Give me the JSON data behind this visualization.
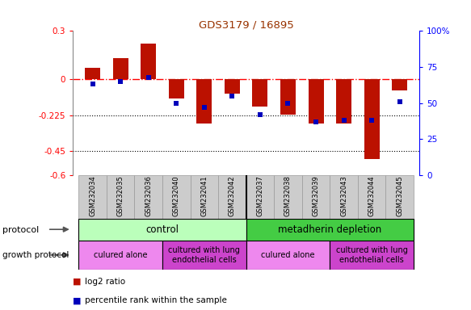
{
  "title": "GDS3179 / 16895",
  "samples": [
    "GSM232034",
    "GSM232035",
    "GSM232036",
    "GSM232040",
    "GSM232041",
    "GSM232042",
    "GSM232037",
    "GSM232038",
    "GSM232039",
    "GSM232043",
    "GSM232044",
    "GSM232045"
  ],
  "log2_ratio": [
    0.07,
    0.13,
    0.22,
    -0.12,
    -0.28,
    -0.09,
    -0.17,
    -0.22,
    -0.28,
    -0.28,
    -0.5,
    -0.07
  ],
  "percentile_rank": [
    63,
    65,
    68,
    50,
    47,
    55,
    42,
    50,
    37,
    38,
    38,
    51
  ],
  "ylim_left": [
    -0.6,
    0.3
  ],
  "ylim_right": [
    0,
    100
  ],
  "yticks_left": [
    0.3,
    0.0,
    -0.225,
    -0.45,
    -0.6
  ],
  "yticklabels_left": [
    "0.3",
    "0",
    "-0.225",
    "-0.45",
    "-0.6"
  ],
  "yticks_right": [
    100,
    75,
    50,
    25,
    0
  ],
  "yticklabels_right": [
    "100%",
    "75",
    "50",
    "25",
    "0"
  ],
  "hline_y": 0.0,
  "dotted_lines": [
    -0.225,
    -0.45
  ],
  "bar_color": "#bb1100",
  "dot_color": "#0000bb",
  "bar_width": 0.55,
  "xlim": [
    -0.7,
    11.7
  ],
  "protocol_colors": [
    "#bbffbb",
    "#44cc44"
  ],
  "protocol_texts": [
    "control",
    "metadherin depletion"
  ],
  "protocol_ranges": [
    [
      0,
      5
    ],
    [
      6,
      11
    ]
  ],
  "growth_colors": [
    "#ee88ee",
    "#cc44cc",
    "#ee88ee",
    "#cc44cc"
  ],
  "growth_texts": [
    "culured alone",
    "cultured with lung\nendothelial cells",
    "culured alone",
    "cultured with lung\nendothelial cells"
  ],
  "growth_ranges": [
    [
      0,
      2
    ],
    [
      3,
      5
    ],
    [
      6,
      8
    ],
    [
      9,
      11
    ]
  ],
  "label_protocol": "protocol",
  "label_growth": "growth protocol",
  "legend_log2": "log2 ratio",
  "legend_pct": "percentile rank within the sample",
  "title_color": "#993300",
  "bar_edge_color": "none",
  "gray_box_color": "#cccccc",
  "gray_box_edge": "#999999"
}
